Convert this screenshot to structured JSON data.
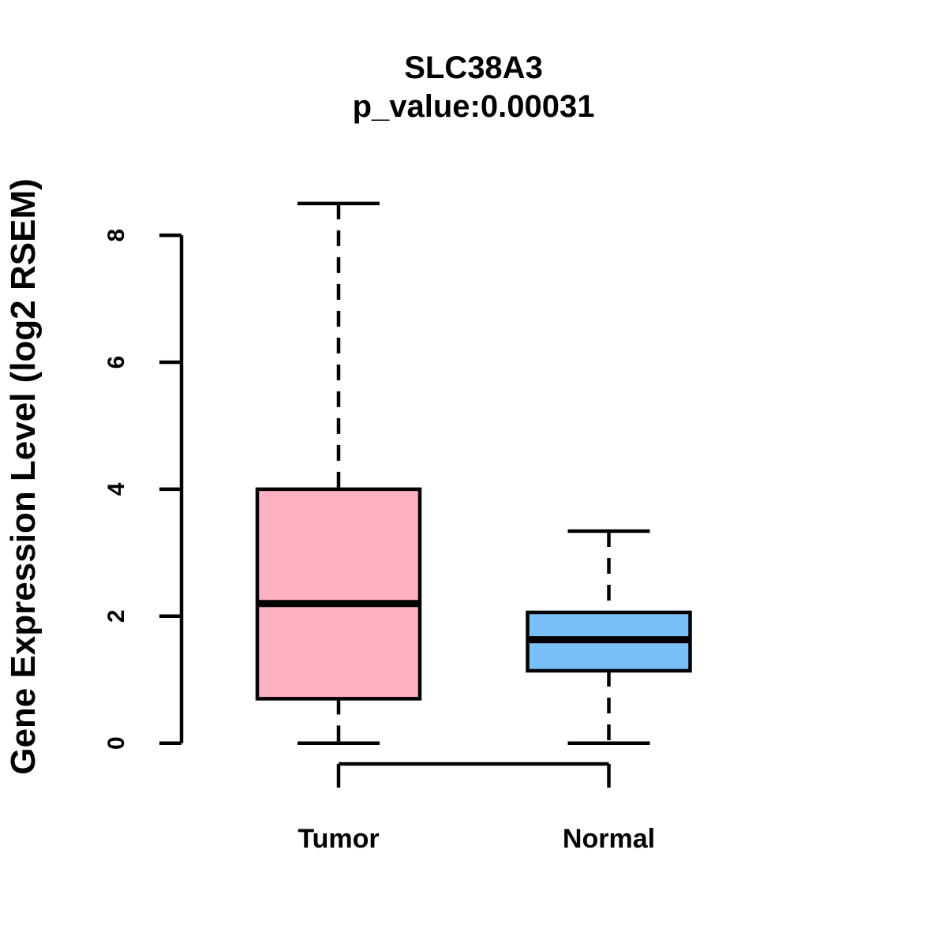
{
  "chart_data": {
    "type": "boxplot",
    "title": "SLC38A3",
    "subtitle": "p_value:0.00031",
    "ylabel": "Gene Expression Level (log2 RSEM)",
    "xlabel": "",
    "categories": [
      "Tumor",
      "Normal"
    ],
    "yticks": [
      0,
      2,
      4,
      6,
      8
    ],
    "ylim": [
      0,
      8.6
    ],
    "grid": false,
    "legend": "none",
    "series": [
      {
        "name": "Tumor",
        "color": "#FFB0C1",
        "whisker_low": 0,
        "q1": 0.7,
        "median": 2.2,
        "q3": 4.0,
        "whisker_high": 8.5
      },
      {
        "name": "Normal",
        "color": "#79BFF7",
        "whisker_low": 0,
        "q1": 1.14,
        "median": 1.63,
        "q3": 2.06,
        "whisker_high": 3.34
      }
    ],
    "colors": {
      "stroke": "#000000",
      "background": "#ffffff"
    }
  }
}
